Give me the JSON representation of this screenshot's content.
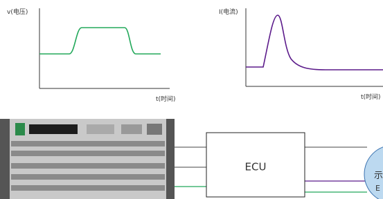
{
  "voltage_plot": {
    "y_label": "v(电压)",
    "x_label": "t(时间)"
  },
  "current_plot": {
    "y_label": "I(电流)",
    "x_label": "t(时间)"
  },
  "ecu": {
    "label": "ECU"
  },
  "display": {
    "label_line1": "示",
    "label_line2": "E"
  }
}
